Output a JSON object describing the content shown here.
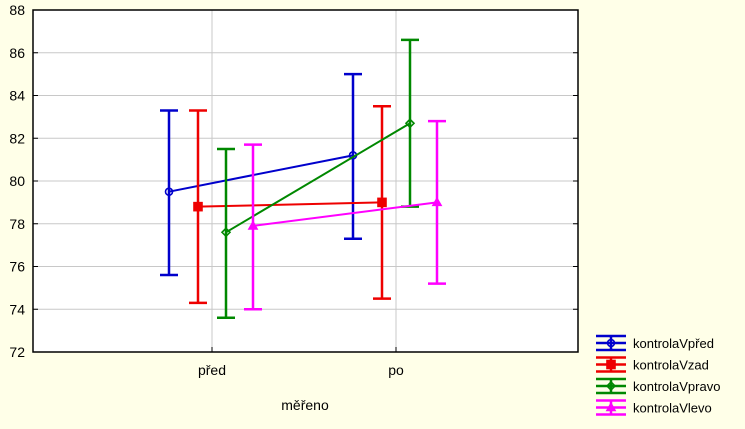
{
  "chart_data": {
    "type": "line",
    "title": "",
    "xlabel": "měřeno",
    "ylabel": "",
    "categories": [
      "před",
      "po"
    ],
    "ylim": [
      72,
      88
    ],
    "yticks": [
      72,
      74,
      76,
      78,
      80,
      82,
      84,
      86,
      88
    ],
    "grid": true,
    "legend_position": "bottom-right",
    "series": [
      {
        "name": "kontrolaVpřed",
        "color": "#0000cc",
        "marker": "circle",
        "means": [
          79.5,
          81.2
        ],
        "lower": [
          75.6,
          77.3
        ],
        "upper": [
          83.3,
          85.0
        ]
      },
      {
        "name": "kontrolaVzad",
        "color": "#ee0000",
        "marker": "square",
        "means": [
          78.8,
          79.0
        ],
        "lower": [
          74.3,
          74.5
        ],
        "upper": [
          83.3,
          83.5
        ]
      },
      {
        "name": "kontrolaVpravo",
        "color": "#008800",
        "marker": "diamond",
        "means": [
          77.6,
          82.7
        ],
        "lower": [
          73.6,
          78.8
        ],
        "upper": [
          81.5,
          86.6
        ]
      },
      {
        "name": "kontrolaVlevo",
        "color": "#ff00ff",
        "marker": "triangle",
        "means": [
          77.9,
          79.0
        ],
        "lower": [
          74.0,
          75.2
        ],
        "upper": [
          81.7,
          82.8
        ]
      }
    ]
  }
}
